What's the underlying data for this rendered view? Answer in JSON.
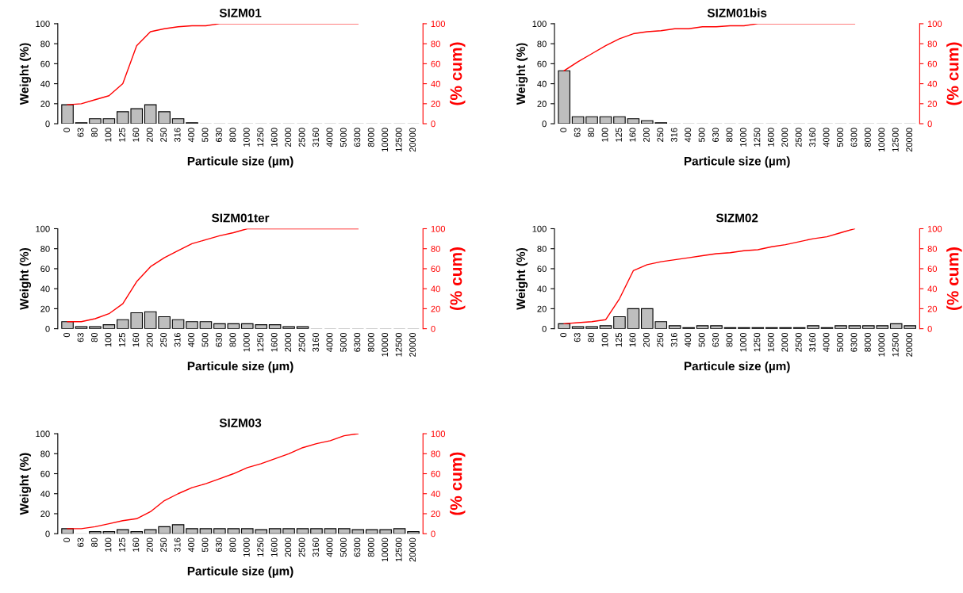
{
  "chart_data": [
    {
      "type": "bar",
      "title": "SIZM01",
      "xlabel": "Particule size (µm)",
      "ylabel": "Weight (%)",
      "y2label": "(% cum)",
      "categories": [
        "0",
        "63",
        "80",
        "100",
        "125",
        "160",
        "200",
        "250",
        "316",
        "400",
        "500",
        "630",
        "800",
        "1000",
        "1250",
        "1600",
        "2000",
        "2500",
        "3160",
        "4000",
        "5000",
        "6300",
        "8000",
        "10000",
        "12500",
        "20000"
      ],
      "ylim": [
        0,
        100
      ],
      "yticks": [
        0,
        20,
        40,
        60,
        80,
        100
      ],
      "y2lim": [
        0,
        100
      ],
      "y2ticks": [
        0,
        20,
        40,
        60,
        80,
        100
      ],
      "grid": false,
      "series": [
        {
          "color": "#bebebe",
          "values": [
            19,
            1,
            5,
            5,
            12,
            15,
            19,
            12,
            5,
            1,
            0,
            0,
            0,
            0,
            0,
            0,
            0,
            0,
            0,
            0,
            0,
            0,
            0,
            0,
            0,
            0
          ]
        },
        {
          "type": "line",
          "axis": "y2",
          "color": "#ff0000",
          "values": [
            19,
            20,
            24,
            28,
            40,
            78,
            92,
            95,
            97,
            98,
            98,
            100,
            100,
            100,
            100,
            100,
            100,
            100,
            100,
            100,
            100,
            100,
            null,
            null,
            null,
            null
          ]
        }
      ]
    },
    {
      "type": "bar",
      "title": "SIZM01bis",
      "xlabel": "Particule size (µm)",
      "ylabel": "Weight (%)",
      "y2label": "(% cum)",
      "categories": [
        "0",
        "63",
        "80",
        "100",
        "125",
        "160",
        "200",
        "250",
        "316",
        "400",
        "500",
        "630",
        "800",
        "1000",
        "1250",
        "1600",
        "2000",
        "2500",
        "3160",
        "4000",
        "5000",
        "6300",
        "8000",
        "10000",
        "12500",
        "20000"
      ],
      "ylim": [
        0,
        100
      ],
      "yticks": [
        0,
        20,
        40,
        60,
        80,
        100
      ],
      "y2lim": [
        0,
        100
      ],
      "y2ticks": [
        0,
        20,
        40,
        60,
        80,
        100
      ],
      "grid": false,
      "series": [
        {
          "color": "#bebebe",
          "values": [
            53,
            7,
            7,
            7,
            7,
            5,
            3,
            1,
            0,
            0,
            0,
            0,
            0,
            0,
            0,
            0,
            0,
            0,
            0,
            0,
            0,
            0,
            0,
            0,
            0,
            0
          ]
        },
        {
          "type": "line",
          "axis": "y2",
          "color": "#ff0000",
          "values": [
            53,
            62,
            70,
            78,
            85,
            90,
            92,
            93,
            95,
            95,
            97,
            97,
            98,
            98,
            100,
            100,
            100,
            100,
            100,
            100,
            100,
            100,
            null,
            null,
            null,
            null
          ]
        }
      ]
    },
    {
      "type": "bar",
      "title": "SIZM01ter",
      "xlabel": "Particule size (µm)",
      "ylabel": "Weight (%)",
      "y2label": "(% cum)",
      "categories": [
        "0",
        "63",
        "80",
        "100",
        "125",
        "160",
        "200",
        "250",
        "316",
        "400",
        "500",
        "630",
        "800",
        "1000",
        "1250",
        "1600",
        "2000",
        "2500",
        "3160",
        "4000",
        "5000",
        "6300",
        "8000",
        "10000",
        "12500",
        "20000"
      ],
      "ylim": [
        0,
        100
      ],
      "yticks": [
        0,
        20,
        40,
        60,
        80,
        100
      ],
      "y2lim": [
        0,
        100
      ],
      "y2ticks": [
        0,
        20,
        40,
        60,
        80,
        100
      ],
      "grid": false,
      "series": [
        {
          "color": "#bebebe",
          "values": [
            7,
            2,
            2,
            4,
            9,
            16,
            17,
            12,
            9,
            7,
            7,
            5,
            5,
            5,
            4,
            4,
            2,
            2,
            0,
            0,
            0,
            0,
            0,
            0,
            0,
            0
          ]
        },
        {
          "type": "line",
          "axis": "y2",
          "color": "#ff0000",
          "values": [
            7,
            7,
            10,
            15,
            25,
            47,
            62,
            71,
            78,
            85,
            89,
            93,
            96,
            100,
            100,
            100,
            100,
            100,
            100,
            100,
            100,
            100,
            null,
            null,
            null,
            null
          ]
        }
      ]
    },
    {
      "type": "bar",
      "title": "SIZM02",
      "xlabel": "Particule size (µm)",
      "ylabel": "Weight (%)",
      "y2label": "(% cum)",
      "categories": [
        "0",
        "63",
        "80",
        "100",
        "125",
        "160",
        "200",
        "250",
        "316",
        "400",
        "500",
        "630",
        "800",
        "1000",
        "1250",
        "1600",
        "2000",
        "2500",
        "3160",
        "4000",
        "5000",
        "6300",
        "8000",
        "10000",
        "12500",
        "20000"
      ],
      "ylim": [
        0,
        100
      ],
      "yticks": [
        0,
        20,
        40,
        60,
        80,
        100
      ],
      "y2lim": [
        0,
        100
      ],
      "y2ticks": [
        0,
        20,
        40,
        60,
        80,
        100
      ],
      "grid": false,
      "series": [
        {
          "color": "#bebebe",
          "values": [
            5,
            2,
            2,
            3,
            12,
            20,
            20,
            7,
            3,
            1,
            3,
            3,
            1,
            1,
            1,
            1,
            1,
            1,
            3,
            1,
            3,
            3,
            3,
            3,
            5,
            3
          ]
        },
        {
          "type": "line",
          "axis": "y2",
          "color": "#ff0000",
          "values": [
            5,
            6,
            7,
            9,
            30,
            58,
            64,
            67,
            69,
            71,
            73,
            75,
            76,
            78,
            79,
            82,
            84,
            87,
            90,
            92,
            96,
            100,
            null,
            null,
            null,
            null
          ]
        }
      ]
    },
    {
      "type": "bar",
      "title": "SIZM03",
      "xlabel": "Particule size (µm)",
      "ylabel": "Weight (%)",
      "y2label": "(% cum)",
      "categories": [
        "0",
        "63",
        "80",
        "100",
        "125",
        "160",
        "200",
        "250",
        "316",
        "400",
        "500",
        "630",
        "800",
        "1000",
        "1250",
        "1600",
        "2000",
        "2500",
        "3160",
        "4000",
        "5000",
        "6300",
        "8000",
        "10000",
        "12500",
        "20000"
      ],
      "ylim": [
        0,
        100
      ],
      "yticks": [
        0,
        20,
        40,
        60,
        80,
        100
      ],
      "y2lim": [
        0,
        100
      ],
      "y2ticks": [
        0,
        20,
        40,
        60,
        80,
        100
      ],
      "grid": false,
      "series": [
        {
          "color": "#bebebe",
          "values": [
            5,
            0,
            2,
            2,
            4,
            2,
            4,
            7,
            9,
            5,
            5,
            5,
            5,
            5,
            4,
            5,
            5,
            5,
            5,
            5,
            5,
            4,
            4,
            4,
            5,
            2
          ]
        },
        {
          "type": "line",
          "axis": "y2",
          "color": "#ff0000",
          "values": [
            5,
            5,
            7,
            10,
            13,
            15,
            22,
            33,
            40,
            46,
            50,
            55,
            60,
            66,
            70,
            75,
            80,
            86,
            90,
            93,
            98,
            100,
            null,
            null,
            null,
            null
          ]
        }
      ]
    }
  ]
}
